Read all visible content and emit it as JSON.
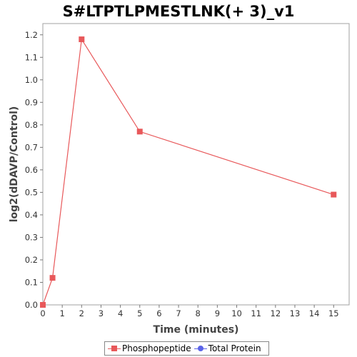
{
  "chart_data": {
    "type": "line",
    "title": "S#LTPTLPMESTLNK(+ 3)_v1",
    "xlabel": "Time (minutes)",
    "ylabel": "log2(dDAVP/Control)",
    "xlim": [
      0,
      15.8
    ],
    "ylim": [
      0,
      1.25
    ],
    "x_ticks": [
      0,
      1,
      2,
      3,
      4,
      5,
      6,
      7,
      8,
      9,
      10,
      11,
      12,
      13,
      14,
      15
    ],
    "y_ticks": [
      0.0,
      0.1,
      0.2,
      0.3,
      0.4,
      0.5,
      0.6,
      0.7,
      0.8,
      0.9,
      1.0,
      1.1,
      1.2
    ],
    "y_tick_labels": [
      "0.0",
      "0.1",
      "0.2",
      "0.3",
      "0.4",
      "0.5",
      "0.6",
      "0.7",
      "0.8",
      "0.9",
      "1.0",
      "1.1",
      "1.2"
    ],
    "grid": false,
    "legend_position": "bottom-center",
    "series": [
      {
        "name": "Phosphopeptide",
        "color": "#e8585a",
        "marker": "square",
        "x": [
          0,
          0.5,
          2,
          5,
          15
        ],
        "values": [
          0.0,
          0.12,
          1.18,
          0.77,
          0.49
        ]
      },
      {
        "name": "Total Protein",
        "color": "#5b64e8",
        "marker": "circle",
        "x": [],
        "values": []
      }
    ]
  }
}
